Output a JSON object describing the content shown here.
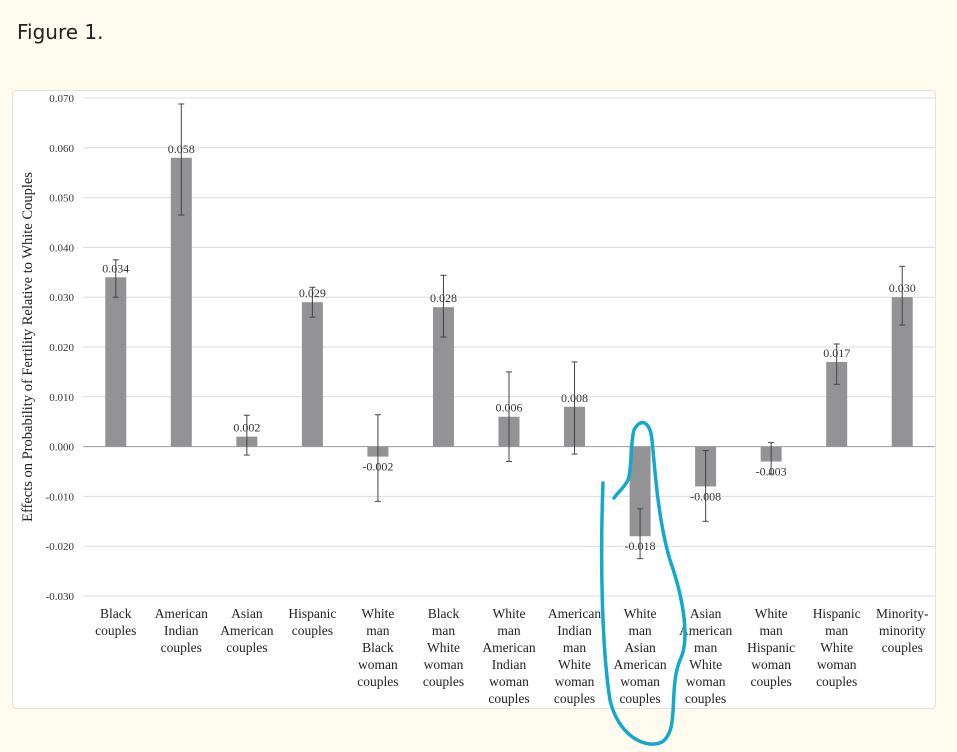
{
  "figure_title": "Figure 1.",
  "chart_data": {
    "type": "bar",
    "title": "",
    "xlabel": "",
    "ylabel": "Effects on Probability of Fertility Relative to White Couples",
    "ylim": [
      -0.03,
      0.07
    ],
    "yticks": [
      "0.070",
      "0.060",
      "0.050",
      "0.040",
      "0.030",
      "0.020",
      "0.010",
      "0.000",
      "-0.010",
      "-0.020",
      "-0.030"
    ],
    "grid": true,
    "categories": [
      [
        "Black",
        "couples"
      ],
      [
        "American",
        "Indian",
        "couples"
      ],
      [
        "Asian",
        "American",
        "couples"
      ],
      [
        "Hispanic",
        "couples"
      ],
      [
        "White",
        "man",
        "Black",
        "woman",
        "couples"
      ],
      [
        "Black",
        "man",
        "White",
        "woman",
        "couples"
      ],
      [
        "White",
        "man",
        "American",
        "Indian",
        "woman",
        "couples"
      ],
      [
        "American",
        "Indian",
        "man",
        "White",
        "woman",
        "couples"
      ],
      [
        "White",
        "man",
        "Asian",
        "American",
        "woman",
        "couples"
      ],
      [
        "Asian",
        "American",
        "man",
        "White",
        "woman",
        "couples"
      ],
      [
        "White",
        "man",
        "Hispanic",
        "woman",
        "couples"
      ],
      [
        "Hispanic",
        "man",
        "White",
        "woman",
        "couples"
      ],
      [
        "Minority-",
        "minority",
        "couples"
      ]
    ],
    "values": [
      0.034,
      0.058,
      0.002,
      0.029,
      -0.002,
      0.028,
      0.006,
      0.008,
      -0.018,
      -0.008,
      -0.003,
      0.017,
      0.03
    ],
    "data_labels": [
      "0.034",
      "0.058",
      "0.002",
      "0.029",
      "-0.002",
      "0.028",
      "0.006",
      "0.008",
      "-0.018",
      "-0.008",
      "-0.003",
      "0.017",
      "0.030"
    ],
    "error_low": [
      0.03,
      0.0465,
      -0.0017,
      0.026,
      -0.011,
      0.022,
      -0.003,
      -0.0015,
      -0.0225,
      -0.015,
      -0.0055,
      0.0125,
      0.0244
    ],
    "error_high": [
      0.0375,
      0.0688,
      0.0063,
      0.032,
      0.0064,
      0.0344,
      0.015,
      0.017,
      -0.0125,
      -0.0008,
      0.0008,
      0.0206,
      0.0362
    ],
    "bar_color": "#939395",
    "annotation": {
      "type": "hand-drawn circle",
      "target_category_index": 8,
      "color": "#12a9cc"
    }
  }
}
